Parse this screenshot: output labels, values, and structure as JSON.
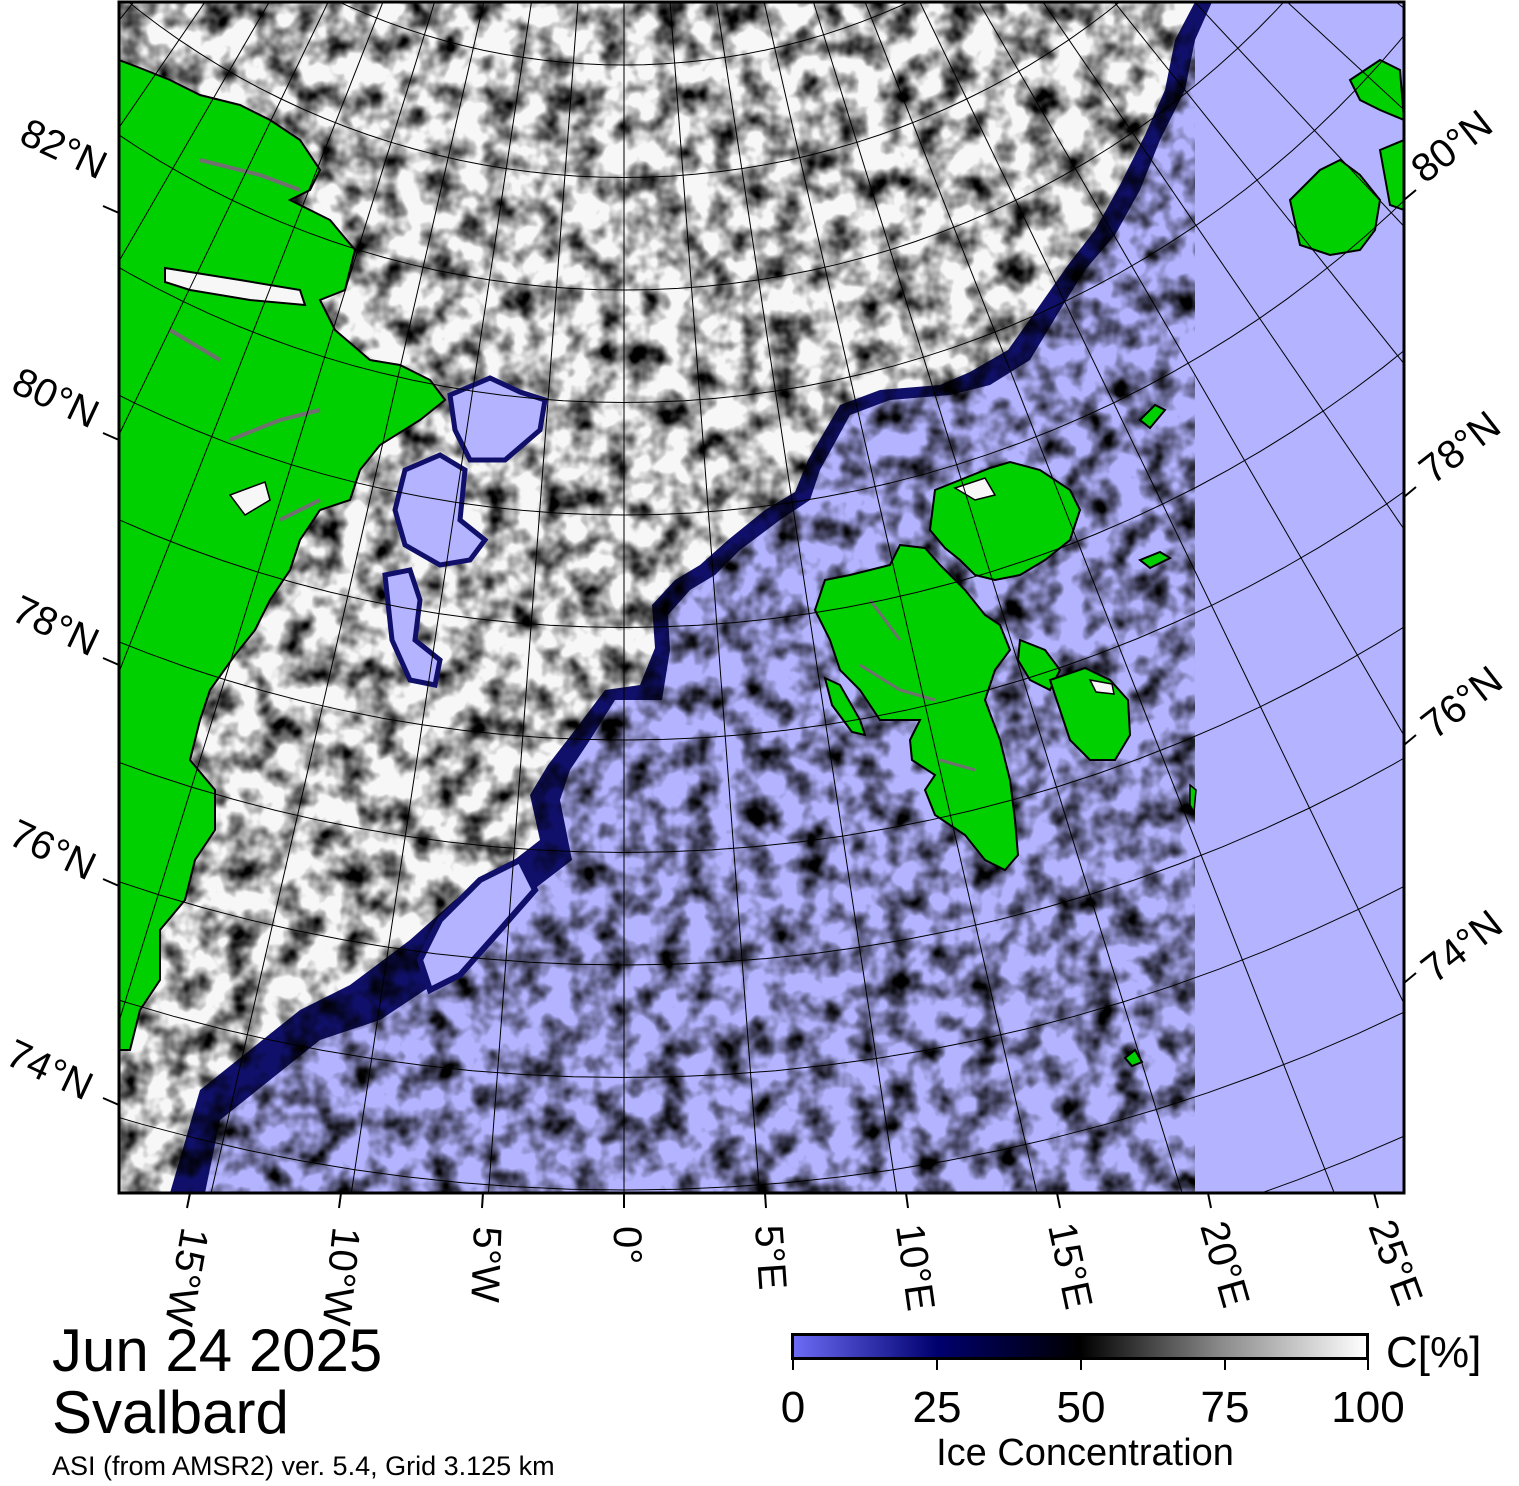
{
  "title": {
    "date": "Jun 24 2025",
    "region": "Svalbard"
  },
  "source": "ASI (from AMSR2) ver. 5.4,  Grid 3.125 km",
  "map": {
    "projection": "polar stereographic (north)",
    "lon_range": [
      -17,
      26
    ],
    "lat_range": [
      73,
      84
    ],
    "colors": {
      "open_water": "#b3b3ff",
      "land": "#00d000",
      "land_outline": "#000000",
      "ice_high": "#ffffff",
      "ice_mid": "#000000",
      "ice_low": "#00005a"
    },
    "lat_labels_left": [
      "82°N",
      "80°N",
      "78°N",
      "76°N",
      "74°N"
    ],
    "lat_labels_right": [
      "80°N",
      "78°N",
      "76°N",
      "74°N"
    ],
    "lon_labels_bottom": [
      "15°W",
      "10°W",
      "5°W",
      "0°",
      "5°E",
      "10°E",
      "15°E",
      "20°E",
      "25°E"
    ]
  },
  "colorbar": {
    "title": "Ice Concentration",
    "unit": "C[%]",
    "ticks": [
      "0",
      "25",
      "50",
      "75",
      "100"
    ],
    "range": [
      0,
      100
    ],
    "stops": [
      "#6b6bf5",
      "#00006e",
      "#000000",
      "#8c8c8c",
      "#ffffff"
    ]
  }
}
